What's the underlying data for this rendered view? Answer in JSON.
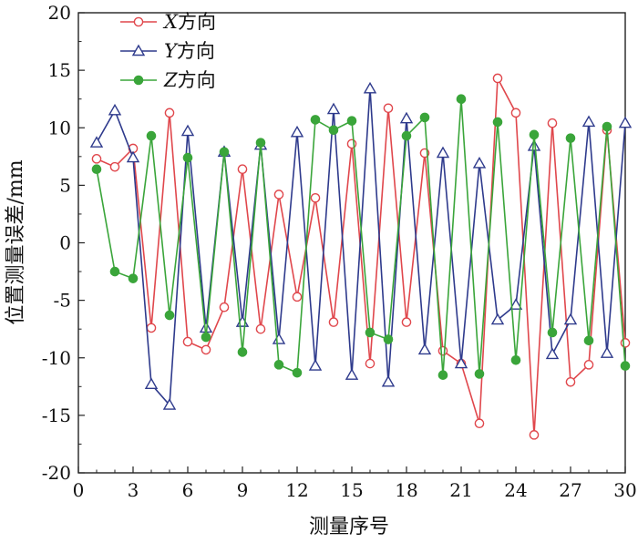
{
  "chart_data": {
    "type": "line",
    "xlabel": "测量序号",
    "ylabel": "位置测量误差/mm",
    "xlim": [
      0,
      30
    ],
    "ylim": [
      -20,
      20
    ],
    "xticks": [
      "0",
      "3",
      "6",
      "9",
      "12",
      "15",
      "18",
      "21",
      "24",
      "27",
      "30"
    ],
    "yticks": [
      "-20",
      "-15",
      "-10",
      "-5",
      "0",
      "5",
      "10",
      "15",
      "20"
    ],
    "legend_position": "top-left",
    "grid": false,
    "x": [
      1,
      2,
      3,
      4,
      5,
      6,
      7,
      8,
      9,
      10,
      11,
      12,
      13,
      14,
      15,
      16,
      17,
      18,
      19,
      20,
      21,
      22,
      23,
      24,
      25,
      26,
      27,
      28,
      29,
      30
    ],
    "series": [
      {
        "name": "X方向",
        "name_letter": "X",
        "name_suffix": "方向",
        "color": "#e0474c",
        "marker": "circle",
        "values": [
          7.3,
          6.6,
          8.2,
          -7.4,
          11.3,
          -8.6,
          -9.3,
          -5.6,
          6.4,
          -7.5,
          4.2,
          -4.7,
          3.9,
          -6.9,
          8.6,
          -10.5,
          11.7,
          -6.9,
          7.8,
          -9.4,
          -10.5,
          -15.7,
          14.3,
          11.3,
          -16.7,
          10.4,
          -12.1,
          -10.6,
          9.8,
          -8.7
        ]
      },
      {
        "name": "Y方向",
        "name_letter": "Y",
        "name_suffix": "方向",
        "color": "#2e3a8c",
        "marker": "triangle",
        "values": [
          8.7,
          11.5,
          7.4,
          -12.3,
          -14.1,
          9.7,
          -7.4,
          7.9,
          -6.9,
          8.5,
          -8.4,
          9.6,
          -10.7,
          11.6,
          -11.5,
          13.4,
          -12.1,
          10.8,
          -9.3,
          7.8,
          -10.5,
          6.9,
          -6.7,
          -5.4,
          8.4,
          -9.7,
          -6.7,
          10.5,
          -9.6,
          10.4
        ]
      },
      {
        "name": "Z方向",
        "name_letter": "Z",
        "name_suffix": "方向",
        "color": "#3aa53a",
        "marker": "filled-circle",
        "values": [
          6.4,
          -2.5,
          -3.1,
          9.3,
          -6.3,
          7.4,
          -8.2,
          7.9,
          -9.5,
          8.7,
          -10.6,
          -11.3,
          10.7,
          9.8,
          10.6,
          -7.8,
          -8.4,
          9.3,
          10.9,
          -11.5,
          12.5,
          -11.4,
          10.5,
          -10.2,
          9.4,
          -7.8,
          9.1,
          -8.5,
          10.1,
          -10.7
        ]
      }
    ]
  }
}
